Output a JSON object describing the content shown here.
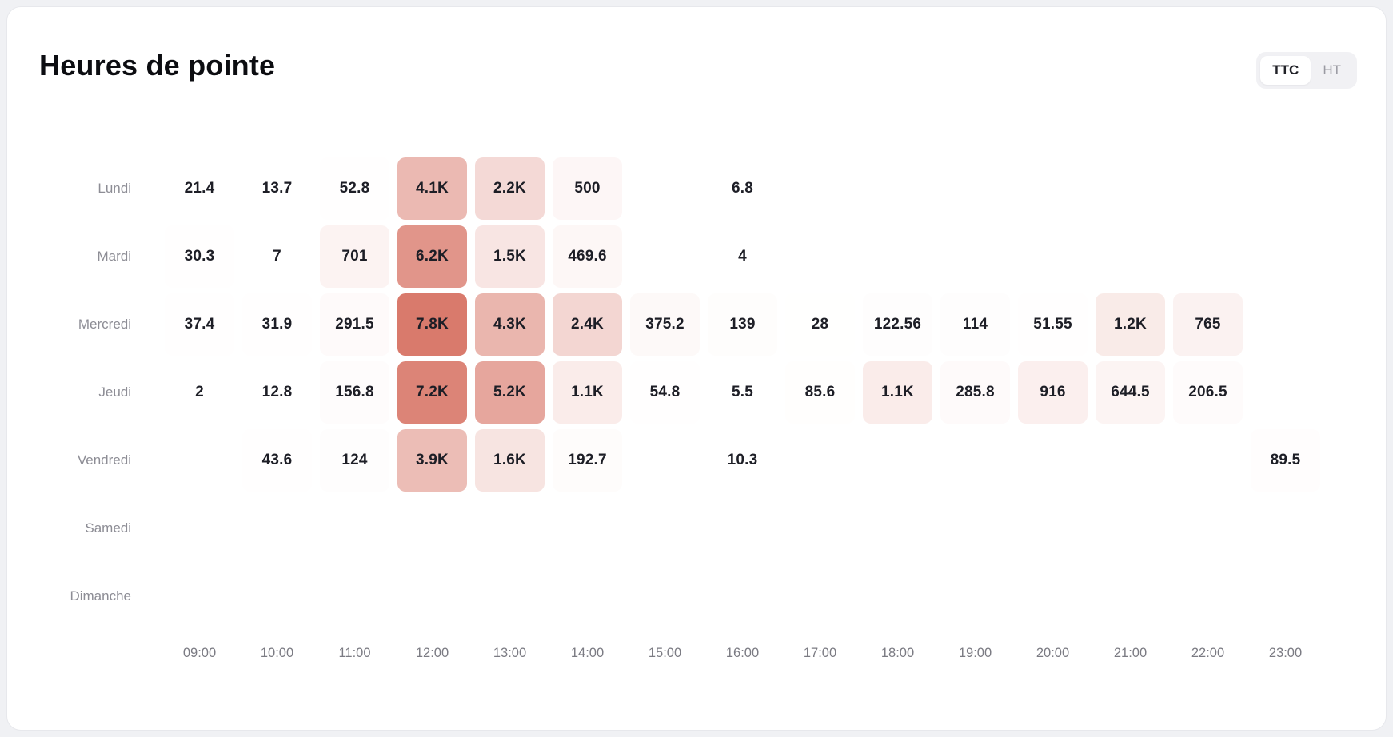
{
  "page": {
    "title": "Heures de pointe"
  },
  "toggle": {
    "options": [
      {
        "label": "TTC",
        "active": true
      },
      {
        "label": "HT",
        "active": false
      }
    ]
  },
  "chart_data": {
    "type": "heatmap",
    "title": "Heures de pointe",
    "x": [
      "09:00",
      "10:00",
      "11:00",
      "12:00",
      "13:00",
      "14:00",
      "15:00",
      "16:00",
      "17:00",
      "18:00",
      "19:00",
      "20:00",
      "21:00",
      "22:00",
      "23:00"
    ],
    "y": [
      "Lundi",
      "Mardi",
      "Mercredi",
      "Jeudi",
      "Vendredi",
      "Samedi",
      "Dimanche"
    ],
    "max_value": 7800,
    "color_scale": {
      "min_color": "#ffffff",
      "max_color": "#d97a6c"
    },
    "series": [
      {
        "name": "Lundi",
        "values": [
          21.4,
          13.7,
          52.8,
          4100,
          2200,
          500,
          null,
          6.8,
          null,
          null,
          null,
          null,
          null,
          null,
          null
        ],
        "labels": [
          "21.4",
          "13.7",
          "52.8",
          "4.1K",
          "2.2K",
          "500",
          null,
          "6.8",
          null,
          null,
          null,
          null,
          null,
          null,
          null
        ]
      },
      {
        "name": "Mardi",
        "values": [
          30.3,
          7,
          701,
          6200,
          1500,
          469.6,
          null,
          4,
          null,
          null,
          null,
          null,
          null,
          null,
          null
        ],
        "labels": [
          "30.3",
          "7",
          "701",
          "6.2K",
          "1.5K",
          "469.6",
          null,
          "4",
          null,
          null,
          null,
          null,
          null,
          null,
          null
        ]
      },
      {
        "name": "Mercredi",
        "values": [
          37.4,
          31.9,
          291.5,
          7800,
          4300,
          2400,
          375.2,
          139,
          28,
          122.56,
          114,
          51.55,
          1200,
          765,
          null
        ],
        "labels": [
          "37.4",
          "31.9",
          "291.5",
          "7.8K",
          "4.3K",
          "2.4K",
          "375.2",
          "139",
          "28",
          "122.56",
          "114",
          "51.55",
          "1.2K",
          "765",
          null
        ]
      },
      {
        "name": "Jeudi",
        "values": [
          2,
          12.8,
          156.8,
          7200,
          5200,
          1100,
          54.8,
          5.5,
          85.6,
          1100,
          285.8,
          916,
          644.5,
          206.5,
          null
        ],
        "labels": [
          "2",
          "12.8",
          "156.8",
          "7.2K",
          "5.2K",
          "1.1K",
          "54.8",
          "5.5",
          "85.6",
          "1.1K",
          "285.8",
          "916",
          "644.5",
          "206.5",
          null
        ]
      },
      {
        "name": "Vendredi",
        "values": [
          null,
          43.6,
          124,
          3900,
          1600,
          192.7,
          null,
          10.3,
          null,
          null,
          null,
          null,
          null,
          null,
          89.5
        ],
        "labels": [
          null,
          "43.6",
          "124",
          "3.9K",
          "1.6K",
          "192.7",
          null,
          "10.3",
          null,
          null,
          null,
          null,
          null,
          null,
          "89.5"
        ]
      },
      {
        "name": "Samedi",
        "values": [
          null,
          null,
          null,
          null,
          null,
          null,
          null,
          null,
          null,
          null,
          null,
          null,
          null,
          null,
          null
        ],
        "labels": [
          null,
          null,
          null,
          null,
          null,
          null,
          null,
          null,
          null,
          null,
          null,
          null,
          null,
          null,
          null
        ]
      },
      {
        "name": "Dimanche",
        "values": [
          null,
          null,
          null,
          null,
          null,
          null,
          null,
          null,
          null,
          null,
          null,
          null,
          null,
          null,
          null
        ],
        "labels": [
          null,
          null,
          null,
          null,
          null,
          null,
          null,
          null,
          null,
          null,
          null,
          null,
          null,
          null,
          null
        ]
      }
    ]
  }
}
